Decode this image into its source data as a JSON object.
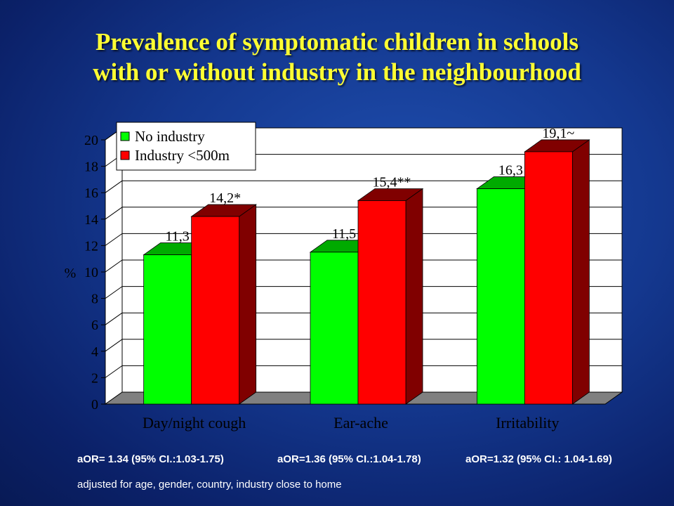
{
  "title_lines": [
    "Prevalence of symptomatic children in schools",
    "with or without industry in the neighbourhood"
  ],
  "chart_data": {
    "type": "bar",
    "categories": [
      "Day/night cough",
      "Ear-ache",
      "Irritability"
    ],
    "series": [
      {
        "name": "No industry",
        "values": [
          11.3,
          11.5,
          16.3
        ],
        "labels": [
          "11,3",
          "11,5",
          "16,3"
        ],
        "color": "#00ff00",
        "side_color": "#00aa00"
      },
      {
        "name": "Industry <500m",
        "values": [
          14.2,
          15.4,
          19.1
        ],
        "labels": [
          "14,2*",
          "15,4**",
          "19,1~"
        ],
        "color": "#ff0000",
        "side_color": "#800000"
      }
    ],
    "ylabel": "%",
    "ylim": [
      0,
      20
    ],
    "yticks": [
      0,
      2,
      4,
      6,
      8,
      10,
      12,
      14,
      16,
      18,
      20
    ],
    "grid": true,
    "legend_position": "top-left",
    "colors": {
      "plot_bg": "#ffffff",
      "floor": "#808080",
      "grid": "#000000"
    }
  },
  "notes": {
    "aor": [
      "aOR= 1.34 (95% CI.:1.03-1.75)",
      "aOR=1.36 (95% CI.:1.04-1.78)",
      "aOR=1.32 (95% CI.: 1.04-1.69)"
    ],
    "adjusted": "adjusted for age, gender, country, industry close to home"
  }
}
